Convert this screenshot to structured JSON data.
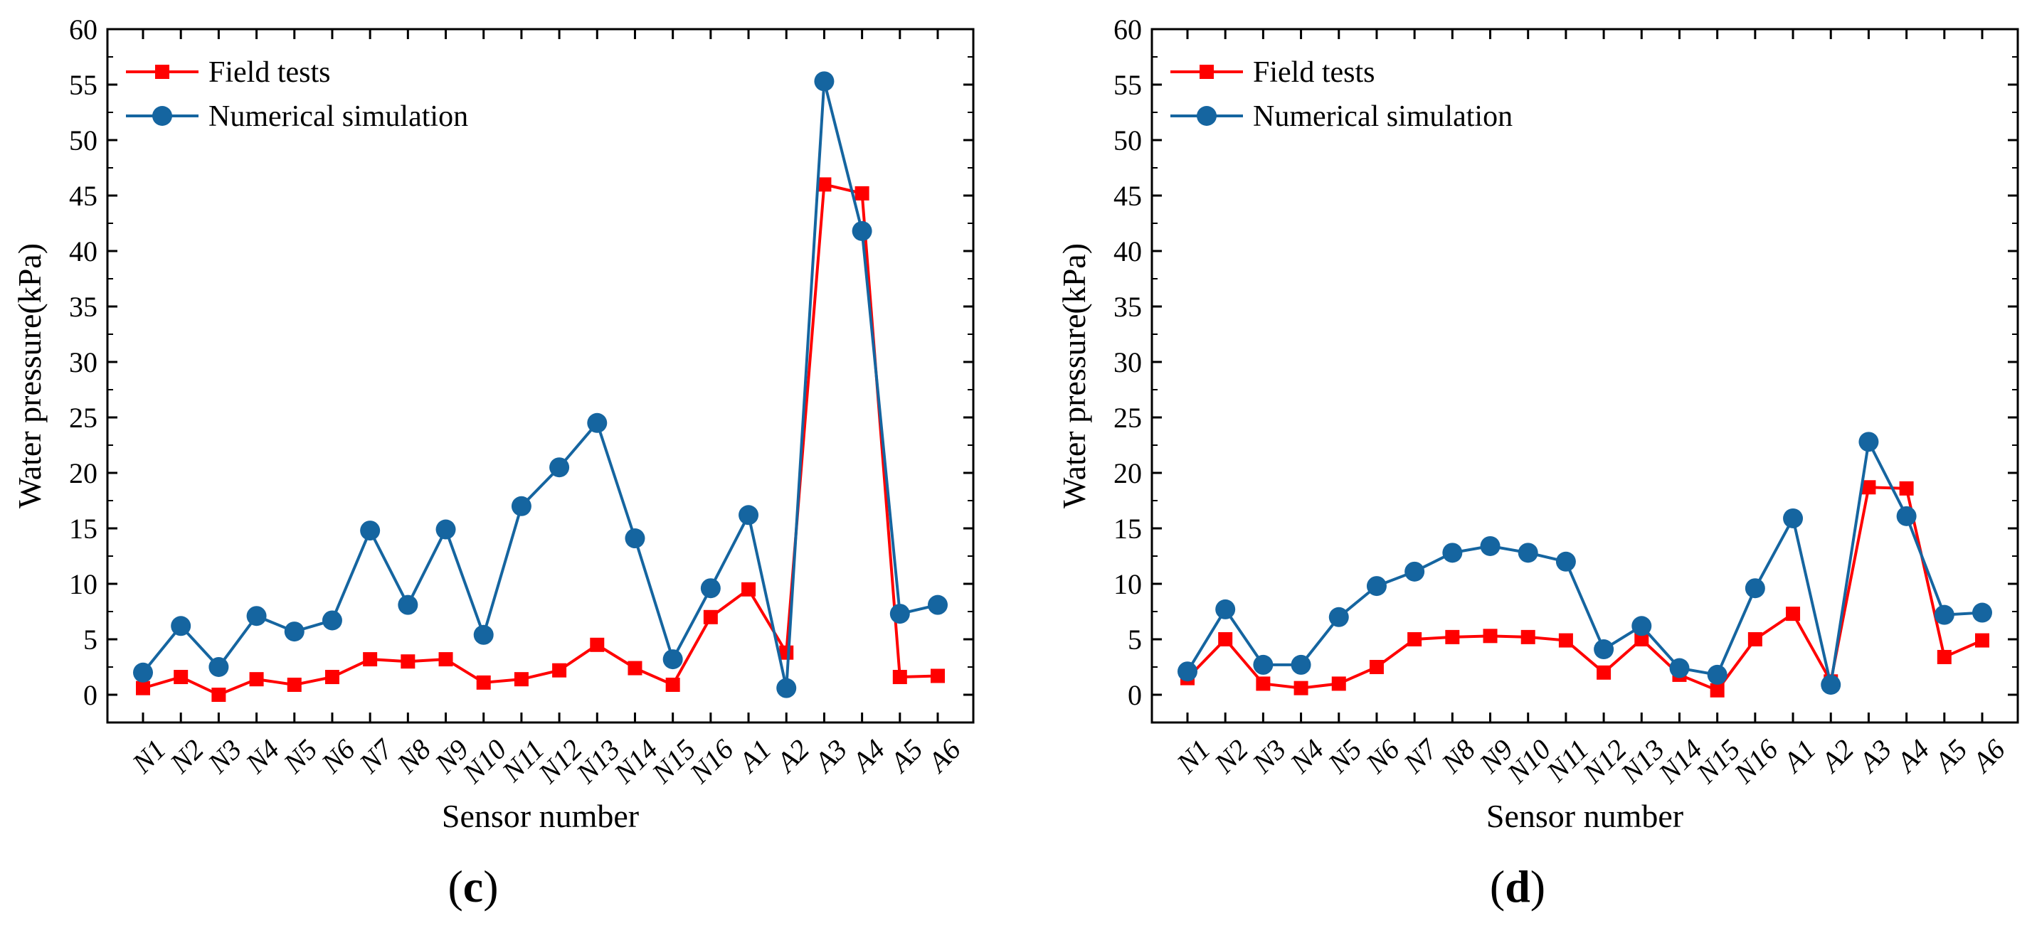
{
  "colors": {
    "field_tests": "#ff0000",
    "numerical_simulation": "#1565a0",
    "axis": "#000000",
    "background": "#ffffff"
  },
  "chart_data": [
    {
      "type": "line",
      "panel_label": {
        "open": "(",
        "letter": "c",
        "close": ")"
      },
      "xlabel": "Sensor number",
      "ylabel": "Water pressure(kPa)",
      "ylim": [
        -2.5,
        60
      ],
      "yticks": [
        0,
        5,
        10,
        15,
        20,
        25,
        30,
        35,
        40,
        45,
        50,
        55,
        60
      ],
      "grid": false,
      "legend_position": "top-left",
      "categories": [
        "N1",
        "N2",
        "N3",
        "N4",
        "N5",
        "N6",
        "N7",
        "N8",
        "N9",
        "N10",
        "N11",
        "N12",
        "N13",
        "N14",
        "N15",
        "N16",
        "A1",
        "A2",
        "A3",
        "A4",
        "A5",
        "A6"
      ],
      "series": [
        {
          "name": "Field tests",
          "marker": "square",
          "values": [
            0.6,
            1.6,
            0.0,
            1.4,
            0.9,
            1.6,
            3.2,
            3.0,
            3.2,
            1.1,
            1.4,
            2.2,
            4.5,
            2.4,
            0.9,
            7.0,
            9.5,
            3.8,
            46.0,
            45.2,
            1.6,
            1.7
          ]
        },
        {
          "name": "Numerical simulation",
          "marker": "circle",
          "values": [
            2.0,
            6.2,
            2.5,
            7.1,
            5.7,
            6.7,
            14.8,
            8.1,
            14.9,
            5.4,
            17.0,
            20.5,
            24.5,
            14.1,
            3.2,
            9.6,
            16.2,
            0.6,
            55.3,
            41.8,
            7.3,
            8.1
          ]
        }
      ]
    },
    {
      "type": "line",
      "panel_label": {
        "open": "(",
        "letter": "d",
        "close": ")"
      },
      "xlabel": "Sensor number",
      "ylabel": "Water pressure(kPa)",
      "ylim": [
        -2.5,
        60
      ],
      "yticks": [
        0,
        5,
        10,
        15,
        20,
        25,
        30,
        35,
        40,
        45,
        50,
        55,
        60
      ],
      "grid": false,
      "legend_position": "top-left",
      "categories": [
        "N1",
        "N2",
        "N3",
        "N4",
        "N5",
        "N6",
        "N7",
        "N8",
        "N9",
        "N10",
        "N11",
        "N12",
        "N13",
        "N14",
        "N15",
        "N16",
        "A1",
        "A2",
        "A3",
        "A4",
        "A5",
        "A6"
      ],
      "series": [
        {
          "name": "Field tests",
          "marker": "square",
          "values": [
            1.5,
            5.0,
            1.0,
            0.6,
            1.0,
            2.5,
            5.0,
            5.2,
            5.3,
            5.2,
            4.9,
            2.0,
            5.0,
            1.8,
            0.4,
            5.0,
            7.3,
            1.2,
            18.7,
            18.6,
            3.4,
            4.9
          ]
        },
        {
          "name": "Numerical simulation",
          "marker": "circle",
          "values": [
            2.1,
            7.7,
            2.7,
            2.7,
            7.0,
            9.8,
            11.1,
            12.8,
            13.4,
            12.8,
            12.0,
            4.1,
            6.2,
            2.4,
            1.8,
            9.6,
            15.9,
            0.9,
            22.8,
            16.1,
            7.2,
            7.4
          ]
        }
      ]
    }
  ]
}
